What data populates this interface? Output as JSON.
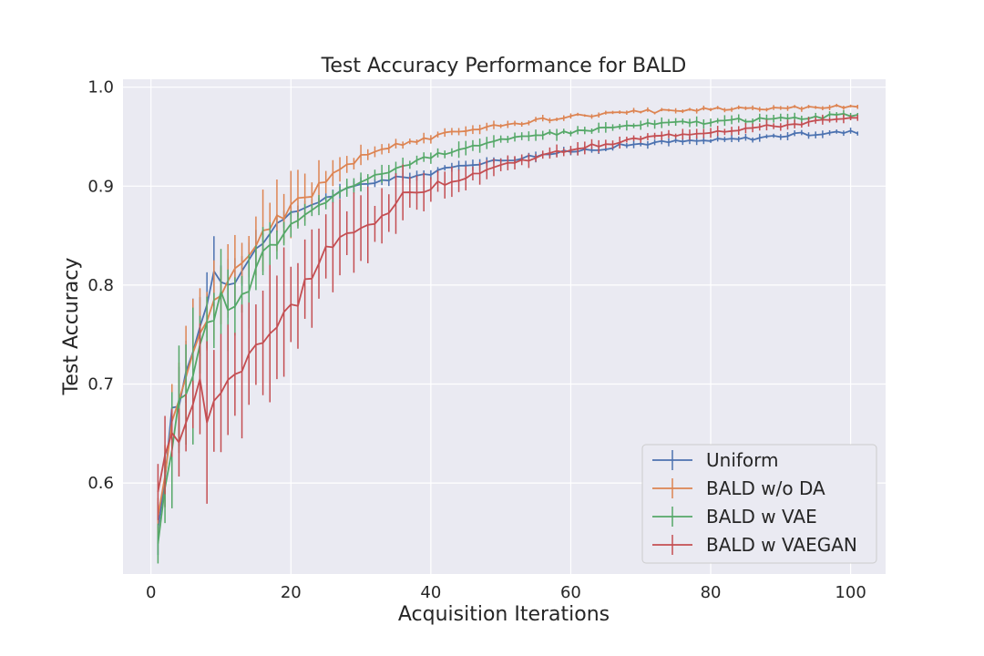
{
  "chart_data": {
    "type": "line",
    "title": "Test Accuracy Performance for BALD",
    "xlabel": "Acquisition Iterations",
    "ylabel": "Test Accuracy",
    "xlim": [
      -4,
      105
    ],
    "ylim": [
      0.508,
      1.008
    ],
    "xticks": [
      0,
      20,
      40,
      60,
      80,
      100
    ],
    "yticks": [
      0.6,
      0.7,
      0.8,
      0.9,
      1.0
    ],
    "ytick_labels": [
      "0.6",
      "0.7",
      "0.8",
      "0.9",
      "1.0"
    ],
    "grid": true,
    "legend_position": "lower-right",
    "error_bars": true,
    "background_color": "#eaeaf2",
    "anchors": [
      {
        "name": "Uniform",
        "color": "#4c72b0",
        "points": [
          [
            1,
            0.55,
            0.02
          ],
          [
            2,
            0.61,
            0.03
          ],
          [
            3,
            0.67,
            0.03
          ],
          [
            4,
            0.68,
            0.04
          ],
          [
            5,
            0.71,
            0.04
          ],
          [
            6,
            0.74,
            0.04
          ],
          [
            7,
            0.76,
            0.04
          ],
          [
            8,
            0.78,
            0.04
          ],
          [
            9,
            0.82,
            0.03
          ],
          [
            10,
            0.805,
            0.02
          ],
          [
            12,
            0.805,
            0.02
          ],
          [
            14,
            0.825,
            0.02
          ],
          [
            16,
            0.845,
            0.015
          ],
          [
            18,
            0.86,
            0.01
          ],
          [
            20,
            0.872,
            0.006
          ],
          [
            25,
            0.888,
            0.006
          ],
          [
            30,
            0.902,
            0.005
          ],
          [
            35,
            0.908,
            0.004
          ],
          [
            40,
            0.913,
            0.004
          ],
          [
            45,
            0.922,
            0.004
          ],
          [
            50,
            0.926,
            0.004
          ],
          [
            55,
            0.931,
            0.004
          ],
          [
            60,
            0.935,
            0.003
          ],
          [
            65,
            0.939,
            0.003
          ],
          [
            70,
            0.943,
            0.003
          ],
          [
            75,
            0.945,
            0.003
          ],
          [
            80,
            0.946,
            0.003
          ],
          [
            85,
            0.948,
            0.003
          ],
          [
            90,
            0.951,
            0.003
          ],
          [
            95,
            0.953,
            0.003
          ],
          [
            101,
            0.955,
            0.003
          ]
        ]
      },
      {
        "name": "BALD w/o DA",
        "color": "#dd8452",
        "points": [
          [
            1,
            0.57,
            0.02
          ],
          [
            2,
            0.61,
            0.03
          ],
          [
            3,
            0.655,
            0.04
          ],
          [
            4,
            0.68,
            0.04
          ],
          [
            5,
            0.7,
            0.04
          ],
          [
            6,
            0.73,
            0.04
          ],
          [
            7,
            0.75,
            0.04
          ],
          [
            8,
            0.77,
            0.04
          ],
          [
            9,
            0.79,
            0.03
          ],
          [
            10,
            0.795,
            0.03
          ],
          [
            12,
            0.81,
            0.03
          ],
          [
            14,
            0.83,
            0.03
          ],
          [
            16,
            0.855,
            0.03
          ],
          [
            18,
            0.87,
            0.03
          ],
          [
            20,
            0.877,
            0.025
          ],
          [
            25,
            0.905,
            0.015
          ],
          [
            30,
            0.93,
            0.008
          ],
          [
            35,
            0.942,
            0.005
          ],
          [
            40,
            0.949,
            0.004
          ],
          [
            45,
            0.957,
            0.004
          ],
          [
            50,
            0.962,
            0.003
          ],
          [
            55,
            0.966,
            0.003
          ],
          [
            60,
            0.97,
            0.002
          ],
          [
            65,
            0.973,
            0.002
          ],
          [
            70,
            0.975,
            0.002
          ],
          [
            75,
            0.977,
            0.002
          ],
          [
            80,
            0.978,
            0.002
          ],
          [
            85,
            0.979,
            0.002
          ],
          [
            90,
            0.979,
            0.002
          ],
          [
            95,
            0.98,
            0.002
          ],
          [
            101,
            0.981,
            0.002
          ]
        ]
      },
      {
        "name": "BALD w VAE",
        "color": "#55a868",
        "points": [
          [
            1,
            0.54,
            0.015
          ],
          [
            2,
            0.595,
            0.03
          ],
          [
            3,
            0.625,
            0.05
          ],
          [
            4,
            0.67,
            0.06
          ],
          [
            5,
            0.7,
            0.05
          ],
          [
            6,
            0.72,
            0.05
          ],
          [
            7,
            0.735,
            0.04
          ],
          [
            8,
            0.755,
            0.04
          ],
          [
            9,
            0.77,
            0.04
          ],
          [
            10,
            0.785,
            0.04
          ],
          [
            12,
            0.775,
            0.03
          ],
          [
            14,
            0.795,
            0.03
          ],
          [
            16,
            0.83,
            0.02
          ],
          [
            18,
            0.845,
            0.02
          ],
          [
            20,
            0.86,
            0.012
          ],
          [
            25,
            0.885,
            0.008
          ],
          [
            30,
            0.905,
            0.008
          ],
          [
            35,
            0.918,
            0.006
          ],
          [
            40,
            0.93,
            0.006
          ],
          [
            45,
            0.94,
            0.006
          ],
          [
            50,
            0.946,
            0.005
          ],
          [
            55,
            0.951,
            0.005
          ],
          [
            60,
            0.955,
            0.004
          ],
          [
            65,
            0.959,
            0.004
          ],
          [
            70,
            0.962,
            0.004
          ],
          [
            75,
            0.964,
            0.004
          ],
          [
            80,
            0.965,
            0.004
          ],
          [
            85,
            0.967,
            0.004
          ],
          [
            90,
            0.968,
            0.004
          ],
          [
            95,
            0.97,
            0.003
          ],
          [
            101,
            0.972,
            0.003
          ]
        ]
      },
      {
        "name": "BALD w VAEGAN",
        "color": "#c44e52",
        "points": [
          [
            1,
            0.59,
            0.03
          ],
          [
            2,
            0.625,
            0.03
          ],
          [
            3,
            0.645,
            0.04
          ],
          [
            4,
            0.645,
            0.04
          ],
          [
            5,
            0.665,
            0.04
          ],
          [
            6,
            0.68,
            0.04
          ],
          [
            7,
            0.695,
            0.05
          ],
          [
            8,
            0.66,
            0.06
          ],
          [
            9,
            0.69,
            0.06
          ],
          [
            10,
            0.685,
            0.05
          ],
          [
            12,
            0.71,
            0.05
          ],
          [
            14,
            0.735,
            0.05
          ],
          [
            16,
            0.745,
            0.05
          ],
          [
            18,
            0.755,
            0.05
          ],
          [
            20,
            0.775,
            0.045
          ],
          [
            25,
            0.835,
            0.035
          ],
          [
            30,
            0.855,
            0.03
          ],
          [
            35,
            0.885,
            0.025
          ],
          [
            40,
            0.9,
            0.015
          ],
          [
            45,
            0.91,
            0.01
          ],
          [
            50,
            0.921,
            0.008
          ],
          [
            55,
            0.929,
            0.006
          ],
          [
            60,
            0.937,
            0.005
          ],
          [
            65,
            0.943,
            0.005
          ],
          [
            70,
            0.948,
            0.004
          ],
          [
            75,
            0.952,
            0.004
          ],
          [
            80,
            0.955,
            0.004
          ],
          [
            85,
            0.958,
            0.004
          ],
          [
            90,
            0.961,
            0.004
          ],
          [
            95,
            0.965,
            0.004
          ],
          [
            101,
            0.968,
            0.003
          ]
        ]
      }
    ]
  }
}
